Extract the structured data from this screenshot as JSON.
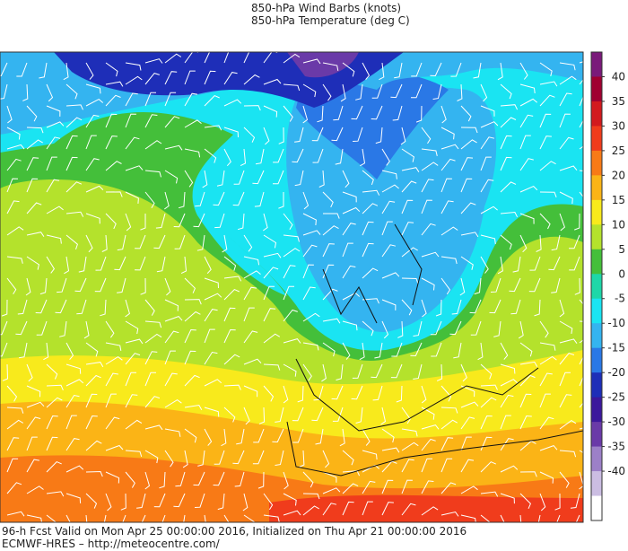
{
  "header": {
    "lines": [
      "850-hPa Wind Barbs  (knots)",
      "850-hPa Temperature (deg C)"
    ]
  },
  "colorbar": {
    "ticks": [
      40,
      35,
      30,
      25,
      20,
      15,
      10,
      5,
      0,
      -5,
      -10,
      -15,
      -20,
      -25,
      -30,
      -35,
      -40
    ],
    "colors": [
      "#7a1a7a",
      "#a00030",
      "#d21a1e",
      "#f03c1c",
      "#f87a16",
      "#fbb416",
      "#f8ea1c",
      "#b4e22c",
      "#44bf3a",
      "#1ed7a8",
      "#1ae4f2",
      "#34b4f0",
      "#2a78e6",
      "#1e2eb8",
      "#3c189c",
      "#6a3aa8",
      "#9c80c8",
      "#cbbde2",
      "#ffffff"
    ]
  },
  "footer": {
    "lines": [
      "96-h Fcst Valid on Mon Apr 25 00:00:00 2016, Initialized on Thu Apr 21 00:00:00 2016",
      "ECMWF-HRES  – http://meteocentre.com/"
    ]
  }
}
